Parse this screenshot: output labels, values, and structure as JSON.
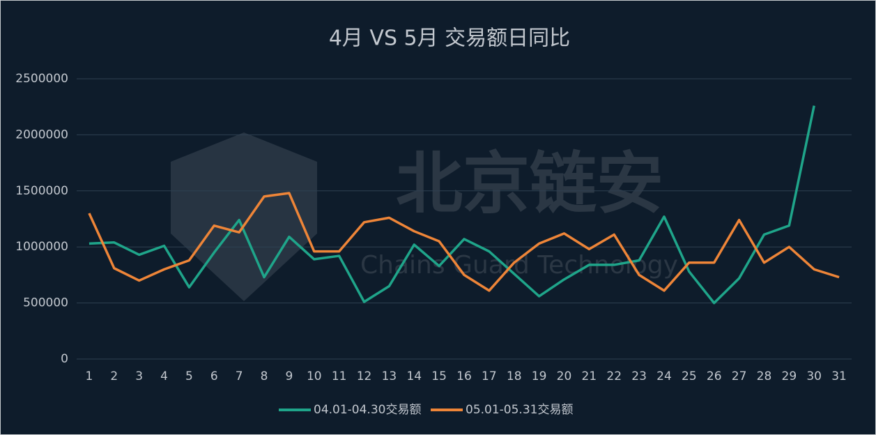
{
  "chart_data": {
    "type": "line",
    "title": "4月 VS  5月 交易额日同比",
    "watermark": {
      "title": "北京链安",
      "subtitle": "Chains Guard Technology"
    },
    "categories": [
      "1",
      "2",
      "3",
      "4",
      "5",
      "6",
      "7",
      "8",
      "9",
      "10",
      "11",
      "12",
      "13",
      "14",
      "15",
      "16",
      "17",
      "18",
      "19",
      "20",
      "21",
      "22",
      "23",
      "24",
      "25",
      "26",
      "27",
      "28",
      "29",
      "30",
      "31"
    ],
    "series": [
      {
        "name": "04.01-04.30交易额",
        "color": "#1fa58a",
        "values": [
          1030000,
          1040000,
          930000,
          1010000,
          640000,
          950000,
          1240000,
          730000,
          1090000,
          890000,
          920000,
          510000,
          650000,
          1020000,
          830000,
          1070000,
          960000,
          760000,
          560000,
          710000,
          840000,
          840000,
          880000,
          1270000,
          780000,
          500000,
          720000,
          1110000,
          1190000,
          2260000,
          null
        ]
      },
      {
        "name": "05.01-05.31交易额",
        "color": "#ee8538",
        "values": [
          1300000,
          810000,
          700000,
          800000,
          880000,
          1190000,
          1130000,
          1450000,
          1480000,
          960000,
          960000,
          1220000,
          1260000,
          1140000,
          1050000,
          750000,
          610000,
          860000,
          1030000,
          1120000,
          980000,
          1110000,
          750000,
          610000,
          860000,
          860000,
          1240000,
          860000,
          1000000,
          800000,
          730000
        ]
      }
    ],
    "ylim": [
      0,
      2500000
    ],
    "yticks": [
      0,
      500000,
      1000000,
      1500000,
      2000000,
      2500000
    ],
    "grid": true
  }
}
